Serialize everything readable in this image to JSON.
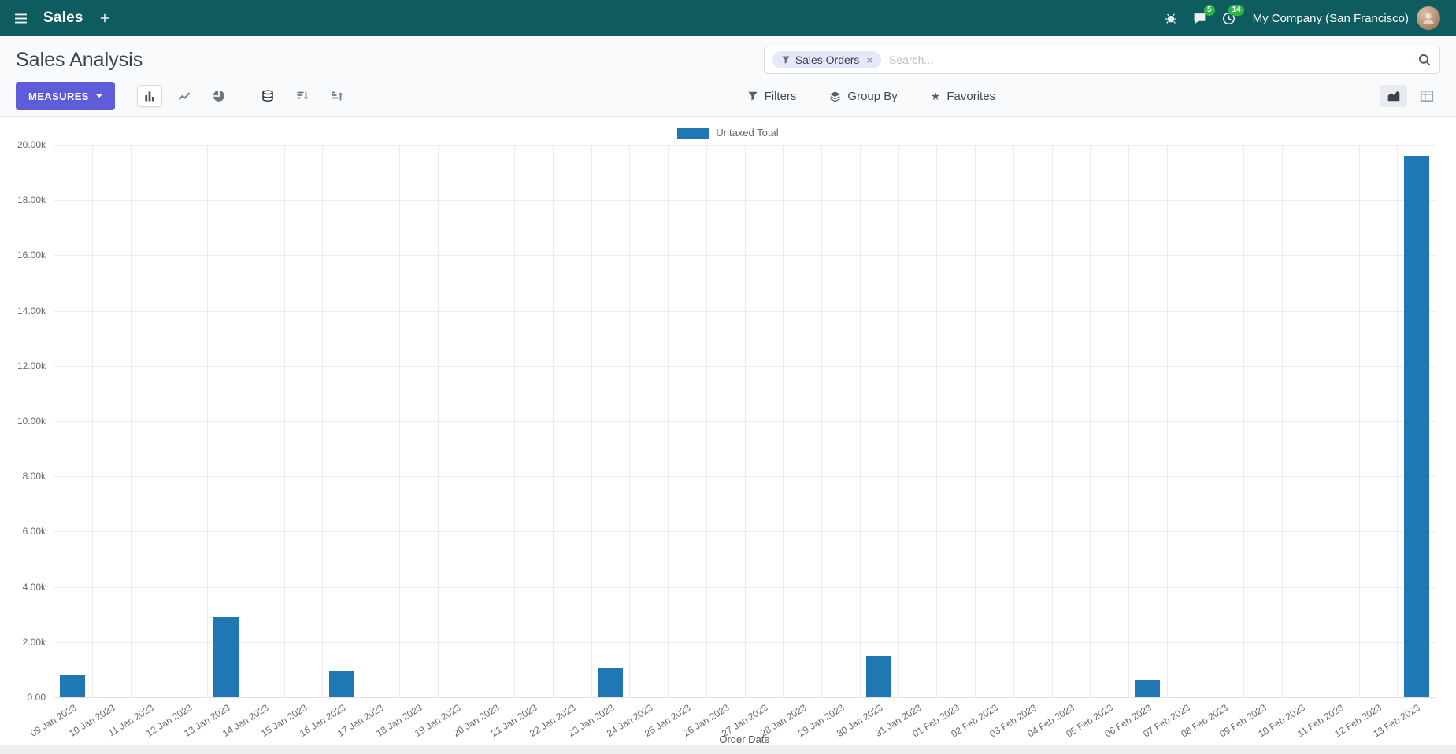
{
  "colors": {
    "navbar-bg": "#0e5b60",
    "primary": "#5f5cd9",
    "badge": "#2fb344",
    "bar": "#1f77b4",
    "facet-bg": "#e5e8f7"
  },
  "icons": {
    "star": "★"
  },
  "navbar": {
    "app_name": "Sales",
    "messages_badge": "5",
    "activities_badge": "14",
    "company": "My Company (San Francisco)"
  },
  "control_panel": {
    "title": "Sales Analysis",
    "search": {
      "facet_label": "Sales Orders",
      "remove_facet": "×",
      "placeholder": "Search..."
    }
  },
  "toolbar": {
    "measures_label": "MEASURES",
    "filters_label": "Filters",
    "group_by_label": "Group By",
    "favorites_label": "Favorites"
  },
  "chart_data": {
    "type": "bar",
    "title": "",
    "legend": "Untaxed Total",
    "xlabel": "Order Date",
    "ylabel": "",
    "ylim": [
      0,
      20000
    ],
    "y_tick_step": 2000,
    "y_tick_labels": [
      "0.00",
      "2.00k",
      "4.00k",
      "6.00k",
      "8.00k",
      "10.00k",
      "12.00k",
      "14.00k",
      "16.00k",
      "18.00k",
      "20.00k"
    ],
    "grid": true,
    "legend_position": "top-center",
    "categories": [
      "09 Jan 2023",
      "10 Jan 2023",
      "11 Jan 2023",
      "12 Jan 2023",
      "13 Jan 2023",
      "14 Jan 2023",
      "15 Jan 2023",
      "16 Jan 2023",
      "17 Jan 2023",
      "18 Jan 2023",
      "19 Jan 2023",
      "20 Jan 2023",
      "21 Jan 2023",
      "22 Jan 2023",
      "23 Jan 2023",
      "24 Jan 2023",
      "25 Jan 2023",
      "26 Jan 2023",
      "27 Jan 2023",
      "28 Jan 2023",
      "29 Jan 2023",
      "30 Jan 2023",
      "31 Jan 2023",
      "01 Feb 2023",
      "02 Feb 2023",
      "03 Feb 2023",
      "04 Feb 2023",
      "05 Feb 2023",
      "06 Feb 2023",
      "07 Feb 2023",
      "08 Feb 2023",
      "09 Feb 2023",
      "10 Feb 2023",
      "11 Feb 2023",
      "12 Feb 2023",
      "13 Feb 2023"
    ],
    "series": [
      {
        "name": "Untaxed Total",
        "values": [
          800,
          0,
          0,
          0,
          2900,
          0,
          0,
          950,
          0,
          0,
          0,
          0,
          0,
          0,
          1050,
          0,
          0,
          0,
          0,
          0,
          0,
          1500,
          0,
          0,
          0,
          0,
          0,
          0,
          620,
          0,
          0,
          0,
          0,
          0,
          0,
          19600
        ]
      }
    ]
  }
}
